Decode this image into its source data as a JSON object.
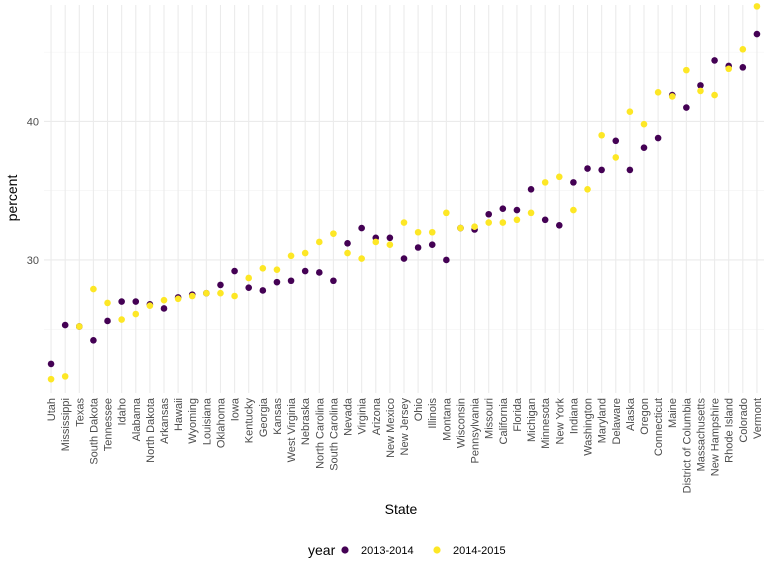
{
  "chart_data": {
    "type": "scatter",
    "xlabel": "State",
    "ylabel": "percent",
    "ylim": [
      20.4,
      48.4
    ],
    "yticks": [
      30,
      40
    ],
    "grid": true,
    "legend": {
      "title": "year",
      "position": "bottom",
      "colors": {
        "2013-2014": "#440154",
        "2014-2015": "#fde725"
      }
    },
    "categories": [
      "Utah",
      "Mississippi",
      "Texas",
      "South Dakota",
      "Tennessee",
      "Idaho",
      "Alabama",
      "North Dakota",
      "Arkansas",
      "Hawaii",
      "Wyoming",
      "Louisiana",
      "Oklahoma",
      "Iowa",
      "Kentucky",
      "Georgia",
      "Kansas",
      "West Virginia",
      "Nebraska",
      "North Carolina",
      "South Carolina",
      "Nevada",
      "Virginia",
      "Arizona",
      "New Mexico",
      "New Jersey",
      "Ohio",
      "Illinois",
      "Montana",
      "Wisconsin",
      "Pennsylvania",
      "Missouri",
      "California",
      "Florida",
      "Michigan",
      "Minnesota",
      "New York",
      "Indiana",
      "Washington",
      "Maryland",
      "Delaware",
      "Alaska",
      "Oregon",
      "Connecticut",
      "Maine",
      "District of Columbia",
      "Massachusetts",
      "New Hampshire",
      "Rhode Island",
      "Colorado",
      "Vermont"
    ],
    "series": [
      {
        "name": "2013-2014",
        "color": "#440154",
        "values": [
          22.5,
          25.3,
          25.2,
          24.2,
          25.6,
          27.0,
          27.0,
          26.8,
          26.5,
          27.3,
          27.5,
          27.6,
          28.2,
          29.2,
          28.0,
          27.8,
          28.4,
          28.5,
          29.2,
          29.1,
          28.5,
          31.2,
          32.3,
          31.6,
          31.6,
          30.1,
          30.9,
          31.1,
          30.0,
          32.3,
          32.2,
          33.3,
          33.7,
          33.6,
          35.1,
          32.9,
          32.5,
          35.6,
          36.6,
          36.5,
          38.6,
          36.5,
          38.1,
          38.8,
          41.9,
          41.0,
          42.6,
          44.4,
          44.0,
          43.9,
          46.3
        ]
      },
      {
        "name": "2014-2015",
        "color": "#fde725",
        "values": [
          21.4,
          21.6,
          25.2,
          27.9,
          26.9,
          25.7,
          26.1,
          26.7,
          27.1,
          27.2,
          27.4,
          27.6,
          27.6,
          27.4,
          28.7,
          29.4,
          29.3,
          30.3,
          30.5,
          31.3,
          31.9,
          30.5,
          30.1,
          31.3,
          31.1,
          32.7,
          32.0,
          32.0,
          33.4,
          32.3,
          32.4,
          32.7,
          32.7,
          32.9,
          33.4,
          35.6,
          36.0,
          33.6,
          35.1,
          39.0,
          37.4,
          40.7,
          39.8,
          42.1,
          41.8,
          43.7,
          42.2,
          41.9,
          43.8,
          45.2,
          48.3
        ]
      }
    ]
  }
}
